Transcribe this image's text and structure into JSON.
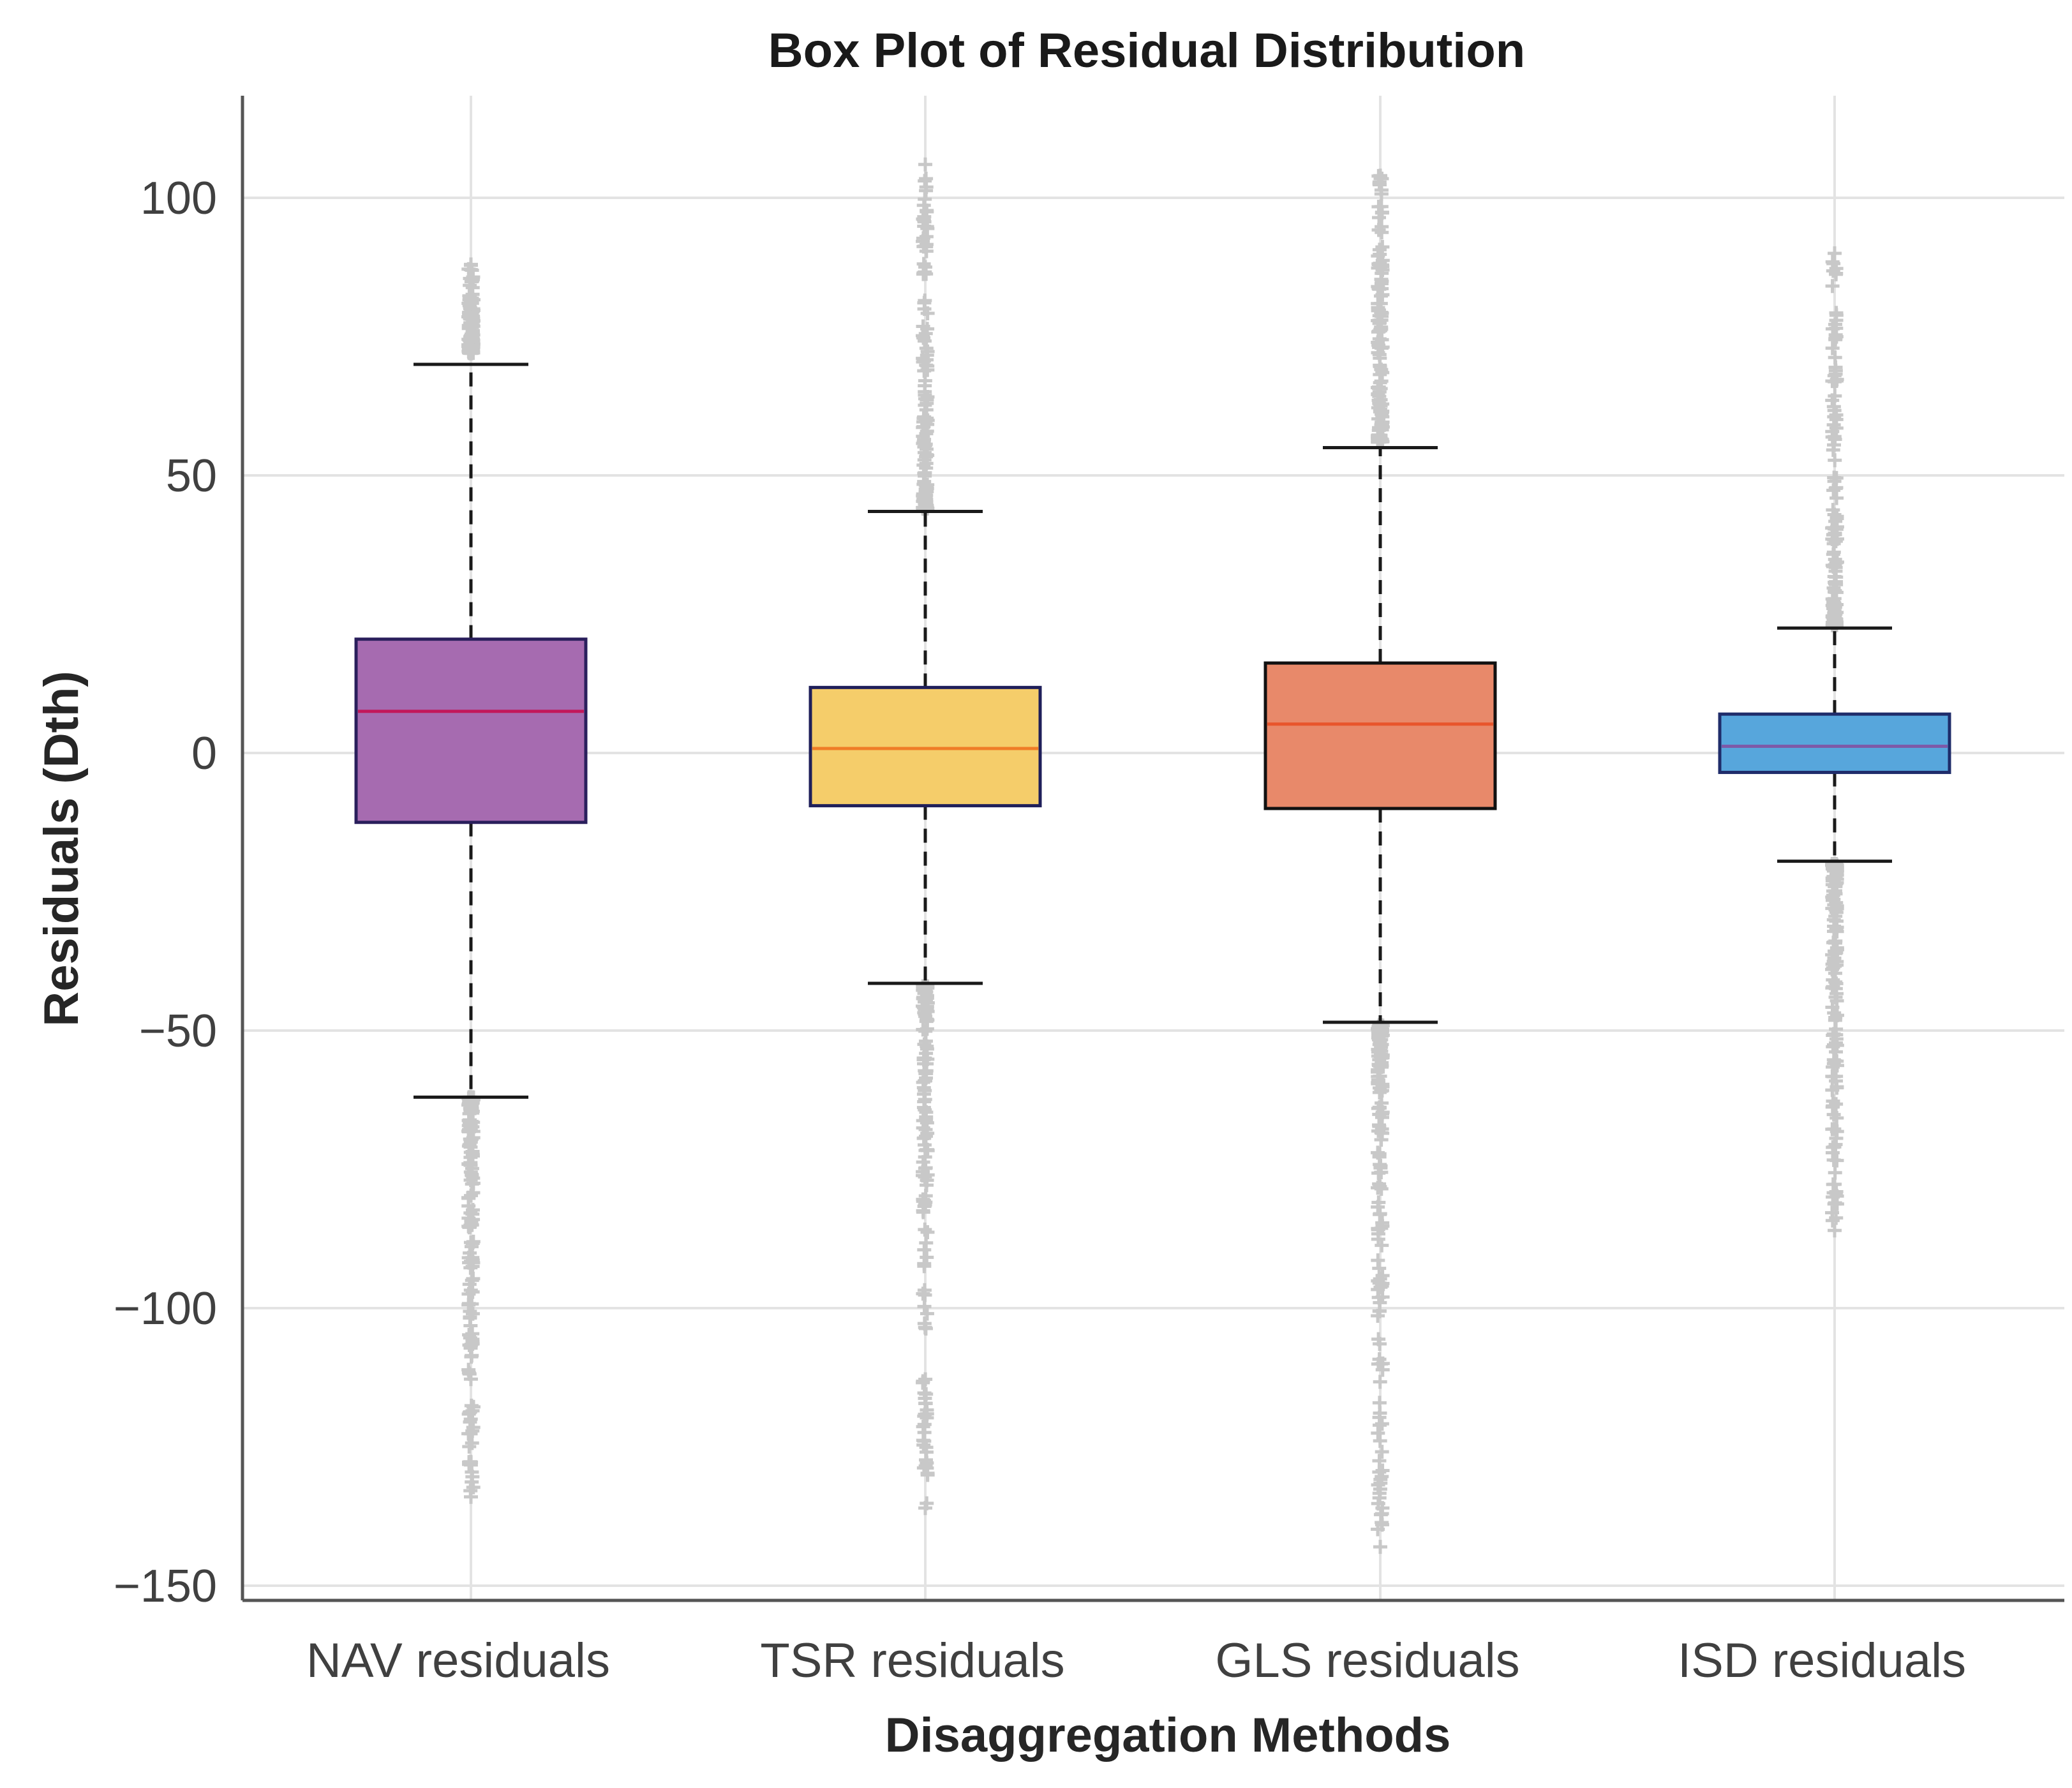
{
  "chart_data": {
    "type": "box",
    "title": "Box Plot of Residual Distribution",
    "xlabel": "Disaggregation Methods",
    "ylabel": "Residuals (Dth)",
    "ylim": [
      -153,
      118
    ],
    "yticks": [
      100,
      50,
      0,
      -50,
      -100,
      -150
    ],
    "ytick_labels": [
      "100",
      "50",
      "0",
      "−50",
      "−100",
      "−150"
    ],
    "grid": true,
    "colors": {
      "grid": "#e3e3e3",
      "axis": "#555555",
      "outlier": "#c8c8c8",
      "whisker": "#1a1a1a"
    },
    "series": [
      {
        "name": "NAV residuals",
        "q1": -12.5,
        "median": 7.5,
        "q3": 20.5,
        "whisker_low": -62,
        "whisker_high": 70,
        "outlier_low": [
          -62,
          -134
        ],
        "outlier_high": [
          72,
          88
        ],
        "fill": "#a66bb0",
        "edge": "#2a1f5c",
        "median_color": "#c2185b"
      },
      {
        "name": "TSR residuals",
        "q1": -9.5,
        "median": 0.8,
        "q3": 11.8,
        "whisker_low": -41.5,
        "whisker_high": 43.5,
        "outlier_low": [
          -42,
          -136
        ],
        "outlier_high": [
          44,
          106
        ],
        "fill": "#f5cd6a",
        "edge": "#1f1f5a",
        "median_color": "#ef7d27"
      },
      {
        "name": "GLS residuals",
        "q1": -10,
        "median": 5.2,
        "q3": 16.2,
        "whisker_low": -48.5,
        "whisker_high": 55,
        "outlier_low": [
          -49,
          -143
        ],
        "outlier_high": [
          56,
          104
        ],
        "fill": "#e8896a",
        "edge": "#111111",
        "median_color": "#e8552b"
      },
      {
        "name": "ISD residuals",
        "q1": -3.5,
        "median": 1.2,
        "q3": 7,
        "whisker_low": -19.5,
        "whisker_high": 22.5,
        "outlier_low": [
          -20,
          -86
        ],
        "outlier_high": [
          23,
          90
        ],
        "fill": "#57a6dc",
        "edge": "#1f2c6a",
        "median_color": "#7d5aa8"
      }
    ]
  }
}
